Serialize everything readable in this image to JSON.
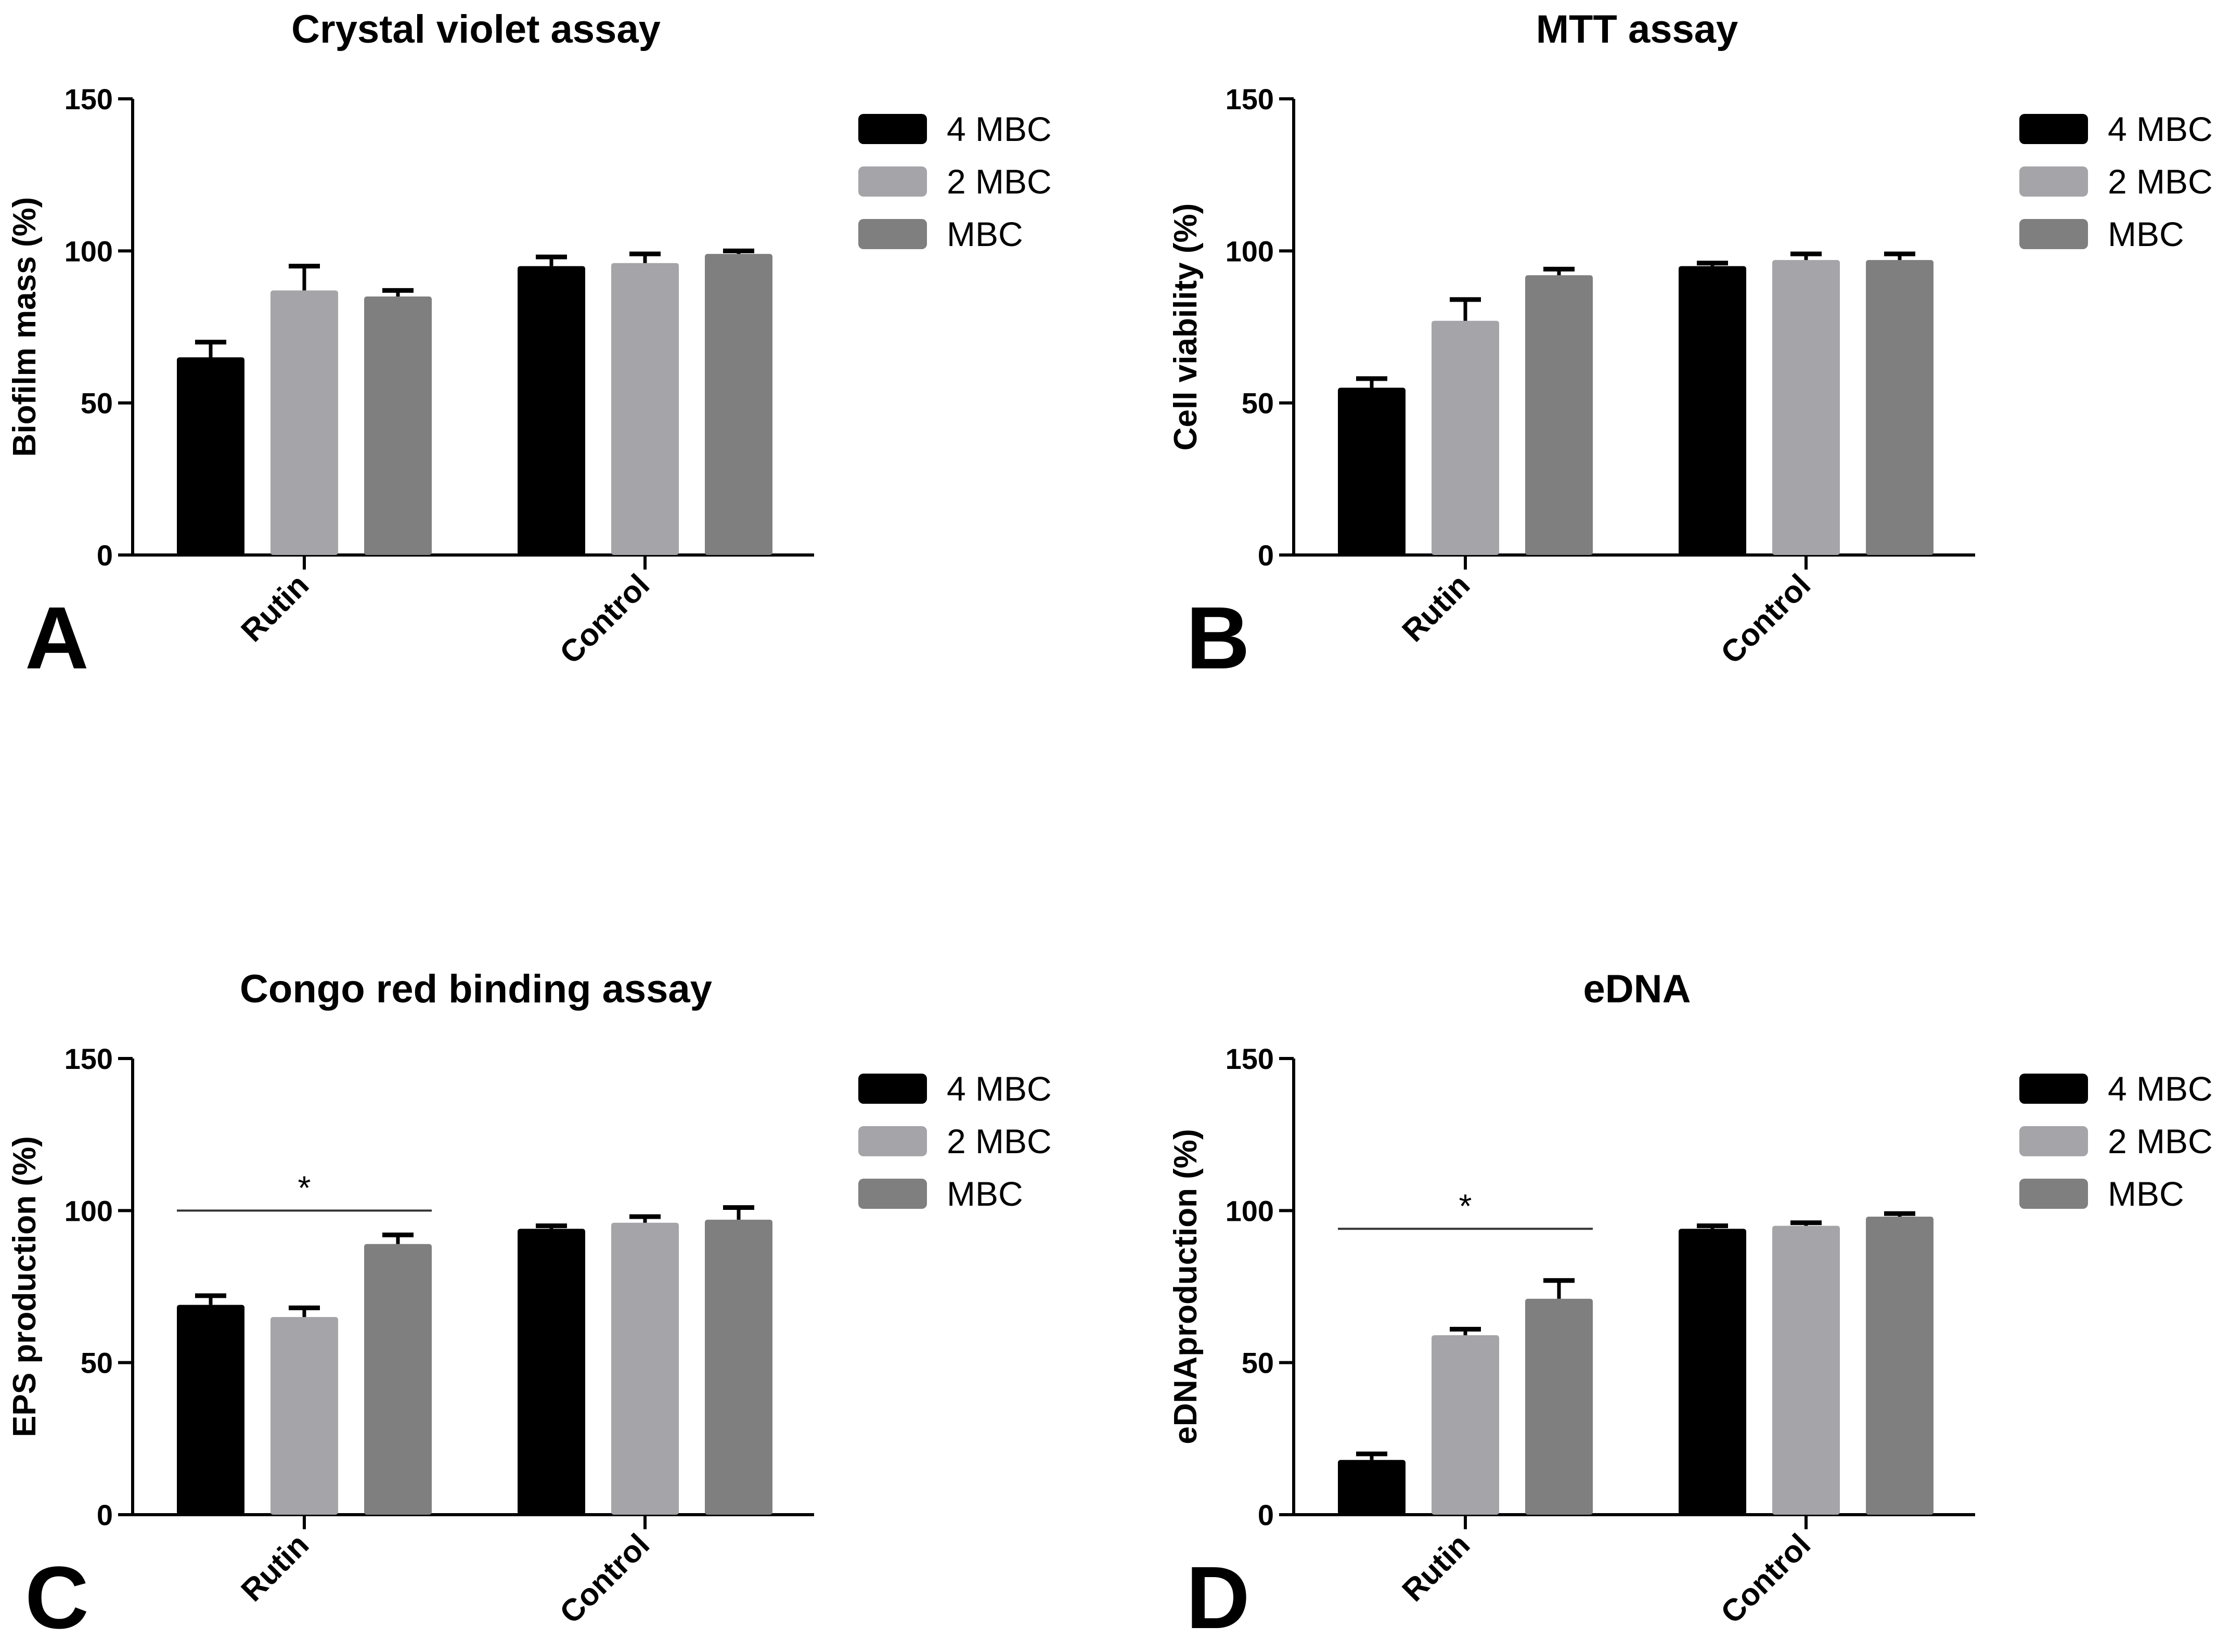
{
  "colors": {
    "s1": "#000000",
    "s2": "#a5a5a9",
    "s3": "#7f7f7f",
    "axis": "#000000",
    "sigline": "#333333"
  },
  "chart_data": [
    {
      "type": "bar",
      "panel": "A",
      "title": "Crystal violet assay",
      "xlabel": "",
      "ylabel": "Biofilm mass (%)",
      "ylim": [
        0,
        150
      ],
      "yticks": [
        0,
        50,
        100,
        150
      ],
      "categories": [
        "Rutin",
        "Control"
      ],
      "series": [
        {
          "name": "4 MBC",
          "values": [
            65,
            95
          ],
          "errors": [
            5,
            3
          ]
        },
        {
          "name": "2 MBC",
          "values": [
            87,
            96
          ],
          "errors": [
            8,
            3
          ]
        },
        {
          "name": "MBC",
          "values": [
            85,
            99
          ],
          "errors": [
            2,
            1
          ]
        }
      ],
      "legend": "top-right",
      "significance": null
    },
    {
      "type": "bar",
      "panel": "B",
      "title": "MTT assay",
      "xlabel": "",
      "ylabel": "Cell viability (%)",
      "ylim": [
        0,
        150
      ],
      "yticks": [
        0,
        50,
        100,
        150
      ],
      "categories": [
        "Rutin",
        "Control"
      ],
      "series": [
        {
          "name": "4 MBC",
          "values": [
            55,
            95
          ],
          "errors": [
            3,
            1
          ]
        },
        {
          "name": "2 MBC",
          "values": [
            77,
            97
          ],
          "errors": [
            7,
            2
          ]
        },
        {
          "name": "MBC",
          "values": [
            92,
            97
          ],
          "errors": [
            2,
            2
          ]
        }
      ],
      "legend": "top-right",
      "significance": null
    },
    {
      "type": "bar",
      "panel": "C",
      "title": "Congo red binding assay",
      "xlabel": "",
      "ylabel": "EPS production (%)",
      "ylim": [
        0,
        150
      ],
      "yticks": [
        0,
        50,
        100,
        150
      ],
      "categories": [
        "Rutin",
        "Control"
      ],
      "series": [
        {
          "name": "4 MBC",
          "values": [
            69,
            94
          ],
          "errors": [
            3,
            1
          ]
        },
        {
          "name": "2 MBC",
          "values": [
            65,
            96
          ],
          "errors": [
            3,
            2
          ]
        },
        {
          "name": "MBC",
          "values": [
            89,
            97
          ],
          "errors": [
            3,
            4
          ]
        }
      ],
      "legend": "top-right",
      "significance": {
        "label": "*",
        "category": "Rutin",
        "y": 100
      }
    },
    {
      "type": "bar",
      "panel": "D",
      "title": "eDNA",
      "xlabel": "",
      "ylabel": "eDNAproduction (%)",
      "ylim": [
        0,
        150
      ],
      "yticks": [
        0,
        50,
        100,
        150
      ],
      "categories": [
        "Rutin",
        "Control"
      ],
      "series": [
        {
          "name": "4 MBC",
          "values": [
            18,
            94
          ],
          "errors": [
            2,
            1
          ]
        },
        {
          "name": "2 MBC",
          "values": [
            59,
            95
          ],
          "errors": [
            2,
            1
          ]
        },
        {
          "name": "MBC",
          "values": [
            71,
            98
          ],
          "errors": [
            6,
            1
          ]
        }
      ],
      "legend": "top-right",
      "significance": {
        "label": "*",
        "category": "Rutin",
        "y": 94
      }
    }
  ]
}
